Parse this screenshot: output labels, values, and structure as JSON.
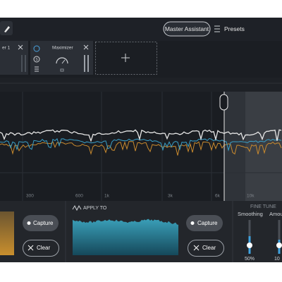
{
  "top_bar": {
    "master_assistant": "Master Assistant",
    "presets": "Presets"
  },
  "modules": [
    {
      "label": "er 1"
    },
    {
      "label": "Maximizer",
      "icon_letter": "S"
    }
  ],
  "spectrum": {
    "frequency_labels": [
      "300",
      "600",
      "1k",
      "3k",
      "6k",
      "10k"
    ]
  },
  "bottom": {
    "left": {
      "capture": "Capture",
      "clear": "Clear"
    },
    "apply_to": {
      "title": "APPLY TO",
      "capture": "Capture",
      "clear": "Clear"
    },
    "fine_tune": {
      "title": "FINE TUNE",
      "sliders": [
        {
          "label": "Smoothing",
          "value": "50%"
        },
        {
          "label": "Amou",
          "value": "10"
        }
      ]
    }
  }
}
